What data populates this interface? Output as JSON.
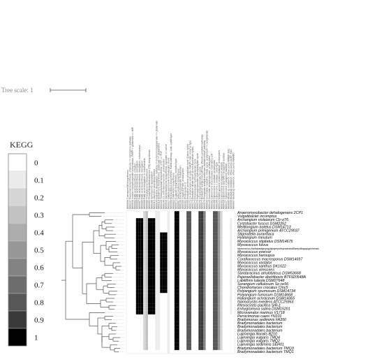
{
  "tree_scale": {
    "label": "Tree scale: 1"
  },
  "legend": {
    "title": "KEGG",
    "levels": [
      "0",
      "0.1",
      "0.2",
      "0.3",
      "0.4",
      "0.5",
      "0.6",
      "0.7",
      "0.8",
      "0.9",
      "1"
    ]
  },
  "columns": [
    "M00536 Coenzyme M biosynthesis",
    "M00137 Flavonoid biosynthesis, chalcone => naringenin pathway",
    "M00048 Inosine monophosphate biosynthesis, PRPP + glutamine => IMP",
    "M00082 Fatty acid biosynthesis, initiation",
    "M00083 Fatty acid biosynthesis, elongation",
    "M00087 Fatty acid biosynthesis, elongation, mitochondria",
    "M00085 Fatty acid biosynthesis, elongation",
    "M00086 Fatty acid elongation in mitochondria",
    "M00089 Triacylglycerol biosynthesis",
    "M00093 Phosphatidylethanolamine (PE) biosynthesis",
    "M00100 Sphingosine degradation",
    "M00113 Jasmonic acid biosynthesis",
    "M00045 Histidine degradation, histidine => N-formiminoglutamate => glutamate",
    "M00118 Glutathione biosynthesis, glutamate => glutathione",
    "M00126 Tetrahydrofolate biosynthesis, GTP => THF",
    "M00140 C1-unit interconversion, prokaryotes",
    "M00019 Valine/isoleucine biosynthesis, pyruvate => valine",
    "M00027 GABA (gamma-Aminobutyrate) shunt",
    "M00060 KDO2-lipid A biosynthesis, Raetz pathway, LpxL-LpxM type",
    "M00063 CMP-KDO biosynthesis",
    "M00074 N-glycan biosynthesis, complex type",
    "M00097 beta-Carotene biosynthesis",
    "M00130 Inositol phosphate metabolism",
    "M00160 V-type ATPase, prokaryotes",
    "M00161 Photosystem II",
    "M00165 Reductive pentose phosphate cycle (Calvin cycle)",
    "M00172 C4-dicarboxylic acid cycle, NADP-malic enzyme type",
    "M00173 Reductive citrate cycle (Arnon-Buchanan cycle)",
    "M00374 Dicarboxylate-hydroxybutyrate cycle",
    "M00375 Hydroxypropionate-hydroxybutylate cycle",
    "M00376 3-Hydroxypropionate bi-cycle",
    "M00377 Reductive acetyl-CoA pathway (Wood-Ljungdahl pathway)",
    "M00579 Phosphate acetyltransferase-acetate kinase pathway",
    "M00620 Incomplete reductive citrate cycle, acetyl-CoA => oxoglutarate",
    "M00149 Succinate dehydrogenase, prokaryotes",
    "M00151 Cytochrome bc1 complex respiratory unit",
    "M00155 Cytochrome c oxidase, prokaryotes",
    "M00156 Cytochrome c oxidase, cbb3-type",
    "M00144 NADH:quinone oxidoreductase, prokaryotes",
    "M00153 Cytochrome bd ubiquinol oxidase",
    "M00416 Cytochrome aa3-600 menaquinol oxidase",
    "M00417 Cytochrome o ubiquinol oxidase",
    "M00695 Multidrug resistance, efflux pump MdtEF-TolC",
    "M00696 Multidrug resistance, efflux pump AcrEF-TolC",
    "M00697 Multidrug resistance, efflux pump MdtABC"
  ],
  "rows": [
    "Anaeromyxobacter dehalogenans 2CP1",
    "Vulgatibacter incomptus",
    "Archangium violaceum Cb vi76",
    "Cystobacter fuscus DSM2262",
    "Melittangium boletus DSM14713",
    "Archangium primigenium ATCC29037",
    "Stigmatella aurantiaca",
    "Hyalangium minutum",
    "Myxococcus stipitatus DSM14675",
    "Myxococcus fulvus",
    "Myxococcus llanfairpwllgwyngyllgogerychwyrndrobwllllantysiliogogogochensis",
    "Myxococcus eversor",
    "Myxococcus hansupus",
    "Corallococcus macrosporus DSM14697",
    "Myxococcus vastator",
    "Myxococcus xanthus DK1622",
    "Myxococcus virescens",
    "Sandaracinus amylolyticus DSM53668",
    "Pajaroellobacter abortibovis BTF920548A",
    "Labilithrix luteola DSM27648",
    "Sorangium cellulosum So ce56",
    "Chondromyces crocatus Cmc5",
    "Polyangium spumosum DSM14734",
    "Polyangium fumosum DSM14668",
    "Haliangium ochraceum DSM14365",
    "Nannocystis exedens ATCC25963",
    "Plesiocystis pacifica SIR-1",
    "Enhygromyxa salina DSM15201",
    "Microvenator marinus V1718",
    "Persicimonas caeni YN101",
    "Bradymonas sediminis FA350",
    "Bradymonadales bacterium",
    "Bradymonadales bacterium",
    "Bradymonadales bacterium",
    "Lujinxingia litoralis B210",
    "Lujinxingia vulgaris TMQ4",
    "Lujinxingia vulgaris TMQ2",
    "Lujinxingia sediminis SEH01",
    "Bradymonadales bacterium TMQ3",
    "Bradymonadales bacterium TMQ1"
  ],
  "heatmap": {
    "level_colors": [
      "#ffffff",
      "#ececec",
      "#d6d6d6",
      "#c2c2c2",
      "#adadad",
      "#989898",
      "#838383",
      "#6d6d6d",
      "#575757",
      "#3a3a3a",
      "#000000"
    ],
    "bands": [
      {
        "rows": [
          2,
          28
        ],
        "cols": [
          4,
          5
        ],
        "level": 10
      },
      {
        "rows": [
          2,
          28
        ],
        "cols": [
          6,
          6
        ],
        "level": 10
      },
      {
        "rows": [
          2,
          28
        ],
        "cols": [
          9,
          11
        ],
        "level": 10
      },
      {
        "rows": [
          6,
          22
        ],
        "cols": [
          14,
          16
        ],
        "level": 10
      },
      {
        "rows": [
          0,
          38
        ],
        "cols": [
          7,
          7
        ],
        "level": 2
      },
      {
        "rows": [
          0,
          38
        ],
        "cols": [
          8,
          8
        ],
        "level": 3
      },
      {
        "rows": [
          0,
          38
        ],
        "cols": [
          12,
          13
        ],
        "level": 1
      },
      {
        "rows": [
          0,
          39
        ],
        "cols": [
          17,
          17
        ],
        "level": 1
      },
      {
        "rows": [
          0,
          38
        ],
        "cols": [
          20,
          21
        ],
        "level": 10
      },
      {
        "rows": [
          0,
          38
        ],
        "cols": [
          25,
          26
        ],
        "level": 8
      },
      {
        "rows": [
          0,
          38
        ],
        "cols": [
          30,
          31
        ],
        "level": 9
      },
      {
        "rows": [
          0,
          38
        ],
        "cols": [
          32,
          32
        ],
        "level": 6
      },
      {
        "rows": [
          0,
          38
        ],
        "cols": [
          36,
          37
        ],
        "level": 8
      },
      {
        "rows": [
          0,
          38
        ],
        "cols": [
          38,
          38
        ],
        "level": 5
      },
      {
        "rows": [
          0,
          38
        ],
        "cols": [
          39,
          39
        ],
        "level": 2
      },
      {
        "rows": [
          2,
          28
        ],
        "cols": [
          43,
          43
        ],
        "level": 1
      }
    ]
  }
}
